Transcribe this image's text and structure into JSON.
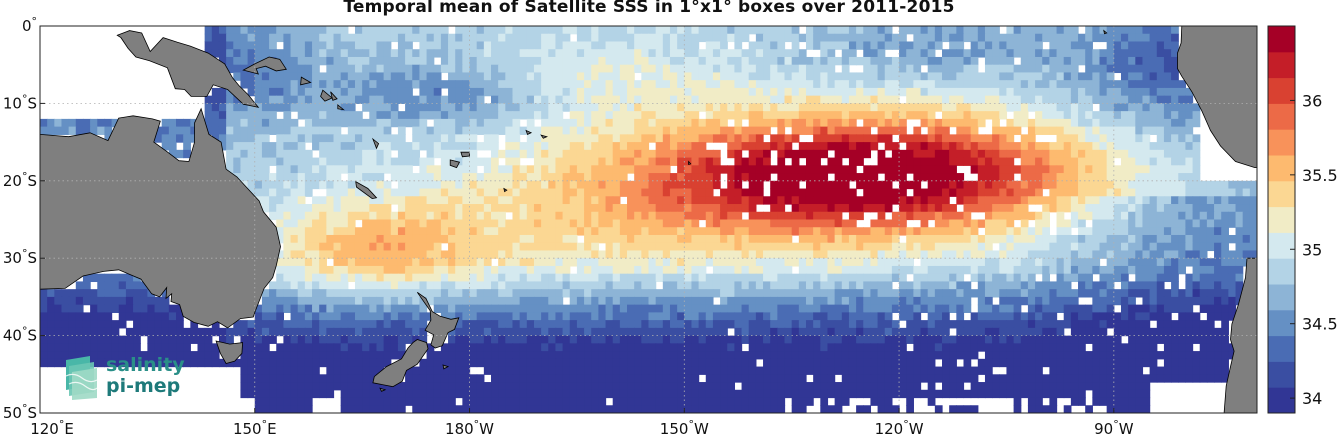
{
  "chart_data": {
    "type": "heatmap",
    "title": "Temporal mean of Satellite SSS in 1°x1° boxes over 2011-2015",
    "x_range_deg": [
      120,
      290
    ],
    "y_range_deg": [
      -50,
      0
    ],
    "xticks": [
      {
        "lon": 120,
        "label": "120°E"
      },
      {
        "lon": 150,
        "label": "150°E"
      },
      {
        "lon": 180,
        "label": "180°W"
      },
      {
        "lon": 210,
        "label": "150°W"
      },
      {
        "lon": 240,
        "label": "120°W"
      },
      {
        "lon": 270,
        "label": "90°W"
      }
    ],
    "yticks": [
      {
        "lat": 0,
        "label": "0°"
      },
      {
        "lat": -10,
        "label": "10°S"
      },
      {
        "lat": -20,
        "label": "20°S"
      },
      {
        "lat": -30,
        "label": "30°S"
      },
      {
        "lat": -40,
        "label": "40°S"
      },
      {
        "lat": -50,
        "label": "50°S"
      }
    ],
    "colorbar": {
      "min": 33.9,
      "max": 36.5,
      "ticks": [
        "34",
        "34.5",
        "35",
        "35.5",
        "36"
      ],
      "colors": [
        "#313695",
        "#3a4ea2",
        "#4a6cb4",
        "#6590c4",
        "#8db4d6",
        "#b3d3e6",
        "#d4e9ef",
        "#f1ecc6",
        "#fbd793",
        "#fdba6f",
        "#f8925a",
        "#ec6a47",
        "#d94131",
        "#c41e28",
        "#a50026"
      ]
    },
    "grid": true,
    "projection": "equirectangular",
    "missing_color": "#ffffff",
    "land_color": "#7f7f7f"
  },
  "logo": {
    "line1": "salinity",
    "line2": "pi-mep"
  }
}
